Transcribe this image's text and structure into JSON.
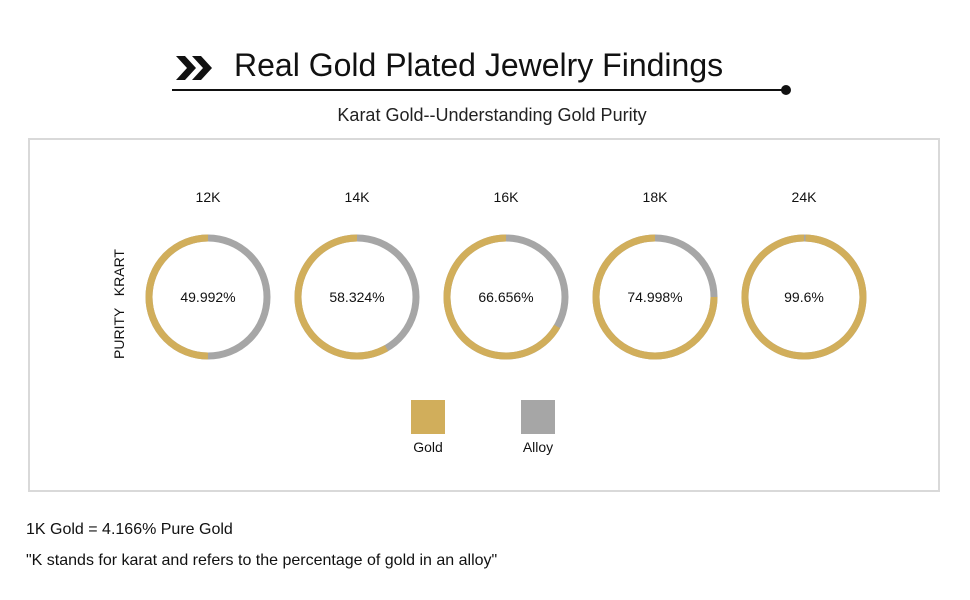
{
  "header": {
    "title": "Real Gold Plated Jewelry Findings",
    "subtitle": "Karat Gold--Understanding Gold Purity",
    "icon": "double-chevron-right-icon"
  },
  "chart_data": {
    "type": "pie",
    "categories": [
      "12K",
      "14K",
      "16K",
      "18K",
      "24K"
    ],
    "value_labels": [
      "49.992%",
      "58.324%",
      "66.656%",
      "74.998%",
      "99.6%"
    ],
    "series": [
      {
        "name": "Gold",
        "values": [
          49.992,
          58.324,
          66.656,
          74.998,
          99.6
        ],
        "color": "#d1ae5b"
      },
      {
        "name": "Alloy",
        "values": [
          50.008,
          41.676,
          33.344,
          25.002,
          0.4
        ],
        "color": "#a6a6a6"
      }
    ],
    "ylabel": "PURITY   KRART",
    "legend": {
      "placement": "bottom-center",
      "entries": [
        "Gold",
        "Alloy"
      ]
    }
  },
  "notes": [
    "1K Gold = 4.166% Pure Gold",
    "\"K stands for karat and refers to the percentage of gold in an alloy\""
  ]
}
